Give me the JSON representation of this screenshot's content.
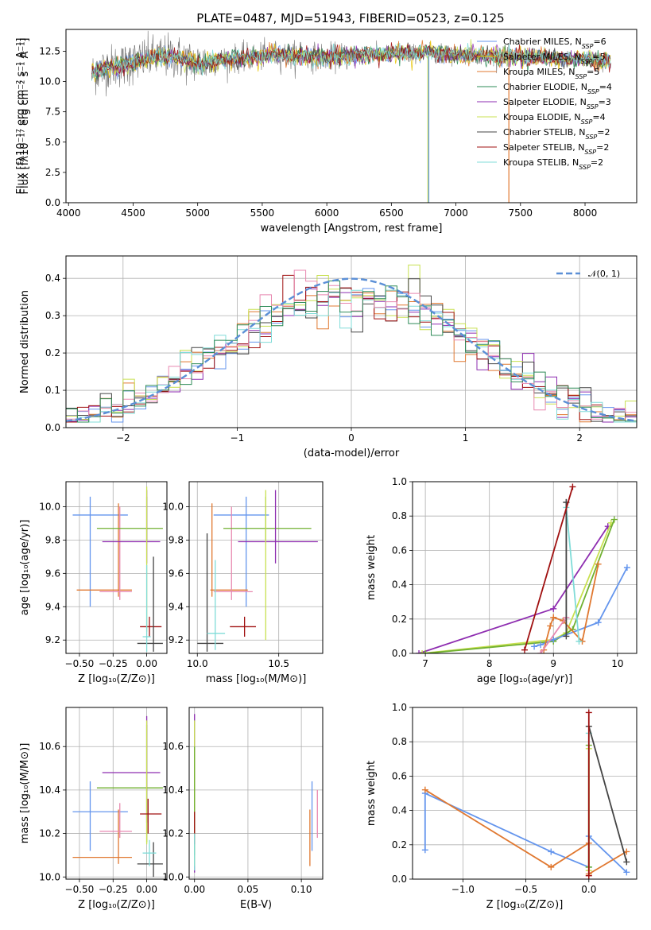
{
  "colors": {
    "chabrier_miles": "#6495ed",
    "salpeter_miles": "#e8c300",
    "kroupa_miles": "#e07830",
    "chabrier_elodie": "#2e8b57",
    "salpeter_elodie": "#8e2db0",
    "kroupa_elodie": "#c8e050",
    "chabrier_stelib": "#444444",
    "salpeter_stelib": "#a01010",
    "kroupa_stelib": "#80dcd8",
    "extra_pink": "#e888b0",
    "extra_green": "#70b030",
    "data": "#777777",
    "gaussian": "#5b8fd6",
    "grid": "#b0b0b0"
  },
  "chart_data": [
    {
      "id": "spectrum",
      "type": "line",
      "title": "PLATE=0487, MJD=51943, FIBERID=0523, z=0.125",
      "xlabel": "wavelength [Angstrom, rest frame]",
      "ylabel": "Flux [fλ10⁻¹⁷ erg cm⁻² s⁻¹ A⁻¹]",
      "xlim": [
        3980,
        8400
      ],
      "ylim": [
        0,
        14.3
      ],
      "xticks": [
        "4000",
        "4500",
        "5000",
        "5500",
        "6000",
        "6500",
        "7000",
        "7500",
        "8000"
      ],
      "yticks": [
        "0.0",
        "2.5",
        "5.0",
        "7.5",
        "10.0",
        "12.5"
      ],
      "legend": {
        "placement": "top-right",
        "entries": [
          {
            "pre": "Chabrier MILES, N",
            "sub": "SSP",
            "post": "=6",
            "color": "chabrier_miles"
          },
          {
            "pre": "Salpeter MILES, N",
            "sub": "SSP",
            "post": "=5",
            "color": "salpeter_miles"
          },
          {
            "pre": "Kroupa MILES, N",
            "sub": "SSP",
            "post": "=5",
            "color": "kroupa_miles"
          },
          {
            "pre": "Chabrier ELODIE, N",
            "sub": "SSP",
            "post": "=4",
            "color": "chabrier_elodie"
          },
          {
            "pre": "Salpeter ELODIE, N",
            "sub": "SSP",
            "post": "=3",
            "color": "salpeter_elodie"
          },
          {
            "pre": "Kroupa ELODIE, N",
            "sub": "SSP",
            "post": "=4",
            "color": "kroupa_elodie"
          },
          {
            "pre": "Chabrier STELIB, N",
            "sub": "SSP",
            "post": "=2",
            "color": "chabrier_stelib"
          },
          {
            "pre": "Salpeter STELIB, N",
            "sub": "SSP",
            "post": "=2",
            "color": "salpeter_stelib"
          },
          {
            "pre": "Kroupa STELIB, N",
            "sub": "SSP",
            "post": "=2",
            "color": "kroupa_stelib"
          }
        ]
      },
      "continuum": {
        "x": [
          4180,
          4300,
          4450,
          4600,
          4800,
          5000,
          5300,
          5600,
          6000,
          6300,
          6500,
          6800,
          7000,
          7300,
          7600,
          7900,
          8200
        ],
        "y": [
          10.6,
          11.2,
          11.4,
          11.9,
          12.1,
          11.5,
          11.9,
          12.2,
          12.0,
          12.2,
          12.3,
          12.4,
          12.2,
          12.1,
          12.0,
          11.9,
          11.7
        ]
      },
      "dips": [
        {
          "x": 6783,
          "color": "kroupa_elodie"
        },
        {
          "x": 6790,
          "color": "chabrier_miles"
        },
        {
          "x": 7410,
          "color": "kroupa_miles"
        }
      ]
    },
    {
      "id": "residuals",
      "type": "bar",
      "xlabel": "(data-model)/error",
      "ylabel": "Normed distribution",
      "xlim": [
        -2.5,
        2.5
      ],
      "ylim": [
        0,
        0.46
      ],
      "xticks": [
        "−2",
        "−1",
        "0",
        "1",
        "2"
      ],
      "yticks": [
        "0.0",
        "0.1",
        "0.2",
        "0.3",
        "0.4"
      ],
      "legend": {
        "placement": "top-right",
        "entries": [
          {
            "label": "𝒩(0, 1)",
            "color": "gaussian"
          }
        ]
      },
      "gaussian": {
        "mu": 0,
        "sigma": 1
      }
    },
    {
      "id": "age_vs_Z",
      "type": "scatter",
      "xlabel": "Z [log₁₀(Z/Z⊙)]",
      "ylabel": "age  [log₁₀(age/yr)]",
      "xlim": [
        -0.6,
        0.15
      ],
      "ylim": [
        9.12,
        10.15
      ],
      "xticks": [
        {
          "v": -0.5,
          "t": "−0.50"
        },
        {
          "v": -0.25,
          "t": "−0.25"
        },
        {
          "v": 0,
          "t": "0.00"
        }
      ],
      "yticks": [
        {
          "v": 9.2,
          "t": "9.2"
        },
        {
          "v": 9.4,
          "t": "9.4"
        },
        {
          "v": 9.6,
          "t": "9.6"
        },
        {
          "v": 9.8,
          "t": "9.8"
        },
        {
          "v": 10.0,
          "t": "10.0"
        }
      ],
      "points": [
        {
          "x": -0.42,
          "y": 9.95,
          "x0": -0.55,
          "x1": -0.14,
          "y0": 9.4,
          "y1": 10.06,
          "c": "chabrier_miles"
        },
        {
          "x": -0.21,
          "y": 9.5,
          "x0": -0.52,
          "x1": -0.11,
          "y0": 9.46,
          "y1": 10.02,
          "c": "kroupa_miles"
        },
        {
          "x": -0.2,
          "y": 9.49,
          "x0": -0.35,
          "x1": -0.11,
          "y0": 9.44,
          "y1": 10.0,
          "c": "extra_pink"
        },
        {
          "x": 0.0,
          "y": 9.87,
          "x0": -0.37,
          "x1": 0.12,
          "y0": 9.8,
          "y1": 10.06,
          "c": "extra_green"
        },
        {
          "x": 0.0,
          "y": 9.79,
          "x0": -0.33,
          "x1": 0.1,
          "y0": 9.66,
          "y1": 10.1,
          "c": "salpeter_elodie"
        },
        {
          "x": 0.0,
          "y": 9.86,
          "x0": 0.0,
          "x1": 0.0,
          "y0": 9.25,
          "y1": 10.12,
          "c": "kroupa_elodie"
        },
        {
          "x": 0.02,
          "y": 9.28,
          "x0": -0.05,
          "x1": 0.11,
          "y0": 9.22,
          "y1": 9.34,
          "c": "salpeter_stelib"
        },
        {
          "x": 0.05,
          "y": 9.18,
          "x0": -0.07,
          "x1": 0.12,
          "y0": 9.13,
          "y1": 9.7,
          "c": "chabrier_stelib"
        },
        {
          "x": 0.0,
          "y": 9.22,
          "x0": -0.03,
          "x1": 0.03,
          "y0": 9.13,
          "y1": 9.65,
          "c": "kroupa_stelib"
        }
      ]
    },
    {
      "id": "age_vs_mass",
      "type": "scatter",
      "xlabel": "mass [log₁₀(M/M⊙)]",
      "ylabel": "",
      "xlim": [
        9.95,
        10.77
      ],
      "ylim": [
        9.12,
        10.15
      ],
      "xticks": [
        {
          "v": 10.0,
          "t": "10.0"
        },
        {
          "v": 10.5,
          "t": "10.5"
        }
      ],
      "yticks": [
        {
          "v": 9.2,
          "t": "9.2"
        },
        {
          "v": 9.4,
          "t": "9.4"
        },
        {
          "v": 9.6,
          "t": "9.6"
        },
        {
          "v": 9.8,
          "t": "9.8"
        },
        {
          "v": 10.0,
          "t": "10.0"
        }
      ],
      "points": [
        {
          "x": 10.3,
          "y": 9.95,
          "x0": 10.1,
          "x1": 10.44,
          "y0": 9.4,
          "y1": 10.06,
          "c": "chabrier_miles"
        },
        {
          "x": 10.09,
          "y": 9.5,
          "x0": 10.08,
          "x1": 10.31,
          "y0": 9.46,
          "y1": 10.02,
          "c": "kroupa_miles"
        },
        {
          "x": 10.21,
          "y": 9.49,
          "x0": 10.1,
          "x1": 10.34,
          "y0": 9.44,
          "y1": 10.0,
          "c": "extra_pink"
        },
        {
          "x": 10.42,
          "y": 9.87,
          "x0": 10.16,
          "x1": 10.7,
          "y0": 9.8,
          "y1": 10.06,
          "c": "extra_green"
        },
        {
          "x": 10.48,
          "y": 9.79,
          "x0": 10.25,
          "x1": 10.74,
          "y0": 9.66,
          "y1": 10.1,
          "c": "salpeter_elodie"
        },
        {
          "x": 10.42,
          "y": 9.86,
          "x0": 10.42,
          "x1": 10.42,
          "y0": 9.2,
          "y1": 10.1,
          "c": "kroupa_elodie"
        },
        {
          "x": 10.29,
          "y": 9.28,
          "x0": 10.2,
          "x1": 10.36,
          "y0": 9.22,
          "y1": 9.34,
          "c": "salpeter_stelib"
        },
        {
          "x": 10.06,
          "y": 9.18,
          "x0": 10.0,
          "x1": 10.16,
          "y0": 9.13,
          "y1": 9.84,
          "c": "chabrier_stelib"
        },
        {
          "x": 10.11,
          "y": 9.24,
          "x0": 10.06,
          "x1": 10.17,
          "y0": 9.14,
          "y1": 9.68,
          "c": "kroupa_stelib"
        }
      ]
    },
    {
      "id": "massweight_vs_age",
      "type": "line",
      "xlabel": "age  [log₁₀(age/yr)]",
      "ylabel": "mass weight",
      "xlim": [
        6.8,
        10.3
      ],
      "ylim": [
        0,
        1.0
      ],
      "xticks": [
        {
          "v": 7,
          "t": "7"
        },
        {
          "v": 8,
          "t": "8"
        },
        {
          "v": 9,
          "t": "9"
        },
        {
          "v": 10,
          "t": "10"
        }
      ],
      "yticks": [
        {
          "v": 0,
          "t": "0.0"
        },
        {
          "v": 0.2,
          "t": "0.2"
        },
        {
          "v": 0.4,
          "t": "0.4"
        },
        {
          "v": 0.6,
          "t": "0.6"
        },
        {
          "v": 0.8,
          "t": "0.8"
        },
        {
          "v": 1.0,
          "t": "1.0"
        }
      ],
      "series": [
        {
          "c": "salpeter_elodie",
          "x": [
            6.9,
            9.0,
            9.85
          ],
          "y": [
            0.0,
            0.26,
            0.74
          ]
        },
        {
          "c": "kroupa_elodie",
          "x": [
            6.95,
            9.0,
            9.2,
            9.9
          ],
          "y": [
            0.0,
            0.08,
            0.12,
            0.76
          ]
        },
        {
          "c": "extra_green",
          "x": [
            7.0,
            9.0,
            9.3,
            9.95
          ],
          "y": [
            0.0,
            0.07,
            0.14,
            0.78
          ]
        },
        {
          "c": "chabrier_miles",
          "x": [
            8.7,
            8.8,
            9.0,
            9.7,
            10.15
          ],
          "y": [
            0.04,
            0.05,
            0.08,
            0.18,
            0.5
          ]
        },
        {
          "c": "kroupa_miles",
          "x": [
            8.85,
            8.95,
            9.0,
            9.15,
            9.45,
            9.7
          ],
          "y": [
            0.02,
            0.16,
            0.21,
            0.19,
            0.07,
            0.52
          ]
        },
        {
          "c": "extra_pink",
          "x": [
            8.8,
            9.2
          ],
          "y": [
            0.0,
            0.21
          ]
        },
        {
          "c": "kroupa_stelib",
          "x": [
            9.2,
            9.4
          ],
          "y": [
            0.85,
            0.07
          ]
        },
        {
          "c": "chabrier_stelib",
          "x": [
            9.2,
            9.2,
            9.2
          ],
          "y": [
            0.1,
            0.88,
            0.88
          ]
        },
        {
          "c": "salpeter_stelib",
          "x": [
            8.55,
            9.3
          ],
          "y": [
            0.02,
            0.97
          ]
        }
      ]
    },
    {
      "id": "mass_vs_Z",
      "type": "scatter",
      "xlabel": "Z [log₁₀(Z/Z⊙)]",
      "ylabel": "mass [log₁₀(M/M⊙)]",
      "xlim": [
        -0.6,
        0.15
      ],
      "ylim": [
        9.99,
        10.78
      ],
      "xticks": [
        {
          "v": -0.5,
          "t": "−0.50"
        },
        {
          "v": -0.25,
          "t": "−0.25"
        },
        {
          "v": 0,
          "t": "0.00"
        }
      ],
      "yticks": [
        {
          "v": 10.0,
          "t": "10.0"
        },
        {
          "v": 10.2,
          "t": "10.2"
        },
        {
          "v": 10.4,
          "t": "10.4"
        },
        {
          "v": 10.6,
          "t": "10.6"
        }
      ],
      "points": [
        {
          "x": -0.42,
          "y": 10.3,
          "x0": -0.55,
          "x1": -0.14,
          "y0": 10.12,
          "y1": 10.44,
          "c": "chabrier_miles"
        },
        {
          "x": -0.21,
          "y": 10.09,
          "x0": -0.55,
          "x1": -0.11,
          "y0": 10.06,
          "y1": 10.31,
          "c": "kroupa_miles"
        },
        {
          "x": -0.2,
          "y": 10.21,
          "x0": -0.35,
          "x1": -0.11,
          "y0": 10.18,
          "y1": 10.34,
          "c": "extra_pink"
        },
        {
          "x": 0.0,
          "y": 10.41,
          "x0": -0.37,
          "x1": 0.12,
          "y0": 10.16,
          "y1": 10.7,
          "c": "extra_green"
        },
        {
          "x": 0.0,
          "y": 10.48,
          "x0": -0.33,
          "x1": 0.1,
          "y0": 10.25,
          "y1": 10.74,
          "c": "salpeter_elodie"
        },
        {
          "x": 0.0,
          "y": 10.42,
          "x0": 0.0,
          "x1": 0.0,
          "y0": 10.15,
          "y1": 10.72,
          "c": "kroupa_elodie"
        },
        {
          "x": 0.01,
          "y": 10.29,
          "x0": -0.05,
          "x1": 0.11,
          "y0": 10.2,
          "y1": 10.36,
          "c": "salpeter_stelib"
        },
        {
          "x": 0.05,
          "y": 10.06,
          "x0": -0.07,
          "x1": 0.12,
          "y0": 10.0,
          "y1": 10.16,
          "c": "chabrier_stelib"
        },
        {
          "x": 0.02,
          "y": 10.11,
          "x0": -0.03,
          "x1": 0.07,
          "y0": 10.05,
          "y1": 10.17,
          "c": "kroupa_stelib"
        }
      ]
    },
    {
      "id": "mass_vs_EBV",
      "type": "scatter",
      "xlabel": "E(B-V)",
      "ylabel": "",
      "xlim": [
        -0.005,
        0.12
      ],
      "ylim": [
        9.99,
        10.78
      ],
      "xticks": [
        {
          "v": 0,
          "t": "0.00"
        },
        {
          "v": 0.05,
          "t": "0.05"
        },
        {
          "v": 0.1,
          "t": "0.10"
        }
      ],
      "yticks": [
        {
          "v": 10.0,
          "t": "10.0"
        },
        {
          "v": 10.2,
          "t": "10.2"
        },
        {
          "v": 10.4,
          "t": "10.4"
        },
        {
          "v": 10.6,
          "t": "10.6"
        }
      ],
      "points": [
        {
          "x": 0.0,
          "y": 10.4,
          "x0": 0.0,
          "x1": 0.0,
          "y0": 10.02,
          "y1": 10.75,
          "c": "salpeter_elodie"
        },
        {
          "x": 0.0,
          "y": 10.4,
          "x0": 0.0,
          "x1": 0.0,
          "y0": 10.05,
          "y1": 10.72,
          "c": "kroupa_elodie"
        },
        {
          "x": 0.0,
          "y": 10.3,
          "x0": 0.0,
          "x1": 0.0,
          "y0": 10.1,
          "y1": 10.6,
          "c": "extra_green"
        },
        {
          "x": 0.0,
          "y": 10.2,
          "x0": 0.0,
          "x1": 0.0,
          "y0": 10.15,
          "y1": 10.3,
          "c": "salpeter_stelib"
        },
        {
          "x": 0.0,
          "y": 10.1,
          "x0": 0.0,
          "x1": 0.0,
          "y0": 10.03,
          "y1": 10.2,
          "c": "kroupa_stelib"
        },
        {
          "x": 0.108,
          "y": 10.25,
          "x0": 0.108,
          "x1": 0.108,
          "y0": 10.05,
          "y1": 10.31,
          "c": "kroupa_miles"
        },
        {
          "x": 0.11,
          "y": 10.3,
          "x0": 0.11,
          "x1": 0.11,
          "y0": 10.12,
          "y1": 10.44,
          "c": "chabrier_miles"
        },
        {
          "x": 0.115,
          "y": 10.28,
          "x0": 0.115,
          "x1": 0.115,
          "y0": 10.18,
          "y1": 10.4,
          "c": "extra_pink"
        }
      ]
    },
    {
      "id": "massweight_vs_Z",
      "type": "line",
      "xlabel": "Z [log₁₀(Z/Z⊙)]",
      "ylabel": "mass weight",
      "xlim": [
        -1.4,
        0.38
      ],
      "ylim": [
        0,
        1.0
      ],
      "xticks": [
        {
          "v": -1.0,
          "t": "−1.0"
        },
        {
          "v": -0.5,
          "t": "−0.5"
        },
        {
          "v": 0,
          "t": "0.0"
        }
      ],
      "yticks": [
        {
          "v": 0,
          "t": "0.0"
        },
        {
          "v": 0.2,
          "t": "0.2"
        },
        {
          "v": 0.4,
          "t": "0.4"
        },
        {
          "v": 0.6,
          "t": "0.6"
        },
        {
          "v": 0.8,
          "t": "0.8"
        },
        {
          "v": 1.0,
          "t": "1.0"
        }
      ],
      "series": [
        {
          "c": "chabrier_miles",
          "x": [
            -1.3,
            -1.3,
            -0.3,
            0.0,
            0.0,
            0.3
          ],
          "y": [
            0.17,
            0.5,
            0.16,
            0.07,
            0.25,
            0.04
          ]
        },
        {
          "c": "kroupa_miles",
          "x": [
            -1.3,
            -0.3,
            0.0,
            0.0,
            0.3
          ],
          "y": [
            0.52,
            0.07,
            0.21,
            0.03,
            0.16
          ]
        },
        {
          "c": "kroupa_stelib",
          "x": [
            0.0,
            0.0
          ],
          "y": [
            0.85,
            0.07
          ]
        },
        {
          "c": "extra_green",
          "x": [
            0.0,
            0.0
          ],
          "y": [
            0.78,
            0.07
          ]
        },
        {
          "c": "kroupa_elodie",
          "x": [
            0.0,
            0.0
          ],
          "y": [
            0.76,
            0.05
          ]
        },
        {
          "c": "chabrier_stelib",
          "x": [
            0.0,
            0.3
          ],
          "y": [
            0.89,
            0.1
          ]
        },
        {
          "c": "salpeter_stelib",
          "x": [
            0.0,
            0.0
          ],
          "y": [
            0.97,
            0.02
          ]
        }
      ]
    }
  ]
}
